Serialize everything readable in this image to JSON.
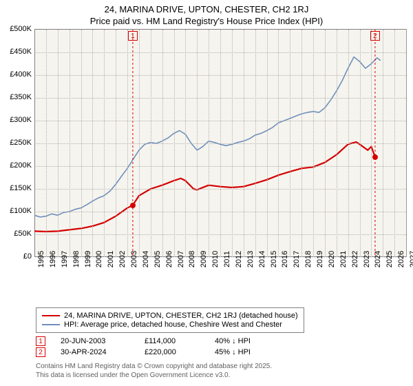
{
  "titles": {
    "line1": "24, MARINA DRIVE, UPTON, CHESTER, CH2 1RJ",
    "line2": "Price paid vs. HM Land Registry's House Price Index (HPI)"
  },
  "chart": {
    "type": "line",
    "background_color": "#f6f4ee",
    "grid_color": "#b0b0b0",
    "axis_color": "#808080",
    "xlim": [
      1995,
      2027
    ],
    "ylim": [
      0,
      500000
    ],
    "ytick_step": 50000,
    "yticks": [
      {
        "v": 0,
        "label": "£0"
      },
      {
        "v": 50000,
        "label": "£50K"
      },
      {
        "v": 100000,
        "label": "£100K"
      },
      {
        "v": 150000,
        "label": "£150K"
      },
      {
        "v": 200000,
        "label": "£200K"
      },
      {
        "v": 250000,
        "label": "£250K"
      },
      {
        "v": 300000,
        "label": "£300K"
      },
      {
        "v": 350000,
        "label": "£350K"
      },
      {
        "v": 400000,
        "label": "£400K"
      },
      {
        "v": 450000,
        "label": "£450K"
      },
      {
        "v": 500000,
        "label": "£500K"
      }
    ],
    "xticks": [
      1995,
      1996,
      1997,
      1998,
      1999,
      2000,
      2001,
      2002,
      2003,
      2004,
      2005,
      2006,
      2007,
      2008,
      2009,
      2010,
      2011,
      2012,
      2013,
      2014,
      2015,
      2016,
      2017,
      2018,
      2019,
      2020,
      2021,
      2022,
      2023,
      2024,
      2025,
      2026,
      2027
    ],
    "series": [
      {
        "id": "price_paid",
        "label": "24, MARINA DRIVE, UPTON, CHESTER, CH2 1RJ (detached house)",
        "color": "#d40000",
        "line_width": 2.2,
        "points": [
          [
            1995,
            57000
          ],
          [
            1996,
            56000
          ],
          [
            1997,
            57000
          ],
          [
            1998,
            60000
          ],
          [
            1999,
            63000
          ],
          [
            2000,
            68000
          ],
          [
            2001,
            76000
          ],
          [
            2002,
            90000
          ],
          [
            2003,
            108000
          ],
          [
            2003.47,
            114000
          ],
          [
            2004,
            135000
          ],
          [
            2005,
            150000
          ],
          [
            2006,
            158000
          ],
          [
            2007,
            168000
          ],
          [
            2007.6,
            173000
          ],
          [
            2008,
            168000
          ],
          [
            2008.7,
            150000
          ],
          [
            2009,
            148000
          ],
          [
            2010,
            158000
          ],
          [
            2011,
            155000
          ],
          [
            2012,
            153000
          ],
          [
            2013,
            155000
          ],
          [
            2014,
            162000
          ],
          [
            2015,
            170000
          ],
          [
            2016,
            180000
          ],
          [
            2017,
            188000
          ],
          [
            2018,
            195000
          ],
          [
            2019,
            198000
          ],
          [
            2020,
            208000
          ],
          [
            2021,
            225000
          ],
          [
            2022,
            248000
          ],
          [
            2022.7,
            253000
          ],
          [
            2023,
            248000
          ],
          [
            2023.7,
            235000
          ],
          [
            2024,
            243000
          ],
          [
            2024.33,
            220000
          ]
        ]
      },
      {
        "id": "hpi",
        "label": "HPI: Average price, detached house, Cheshire West and Chester",
        "color": "#6f8fbd",
        "line_width": 1.6,
        "points": [
          [
            1995,
            92000
          ],
          [
            1995.5,
            88000
          ],
          [
            1996,
            90000
          ],
          [
            1996.5,
            95000
          ],
          [
            1997,
            92000
          ],
          [
            1997.5,
            98000
          ],
          [
            1998,
            100000
          ],
          [
            1998.5,
            105000
          ],
          [
            1999,
            108000
          ],
          [
            1999.5,
            115000
          ],
          [
            2000,
            123000
          ],
          [
            2000.5,
            130000
          ],
          [
            2001,
            135000
          ],
          [
            2001.5,
            145000
          ],
          [
            2002,
            160000
          ],
          [
            2002.5,
            178000
          ],
          [
            2003,
            195000
          ],
          [
            2003.5,
            215000
          ],
          [
            2004,
            235000
          ],
          [
            2004.5,
            248000
          ],
          [
            2005,
            252000
          ],
          [
            2005.5,
            250000
          ],
          [
            2006,
            255000
          ],
          [
            2006.5,
            262000
          ],
          [
            2007,
            272000
          ],
          [
            2007.5,
            278000
          ],
          [
            2008,
            270000
          ],
          [
            2008.5,
            250000
          ],
          [
            2009,
            235000
          ],
          [
            2009.5,
            243000
          ],
          [
            2010,
            255000
          ],
          [
            2010.5,
            252000
          ],
          [
            2011,
            248000
          ],
          [
            2011.5,
            245000
          ],
          [
            2012,
            248000
          ],
          [
            2012.5,
            252000
          ],
          [
            2013,
            255000
          ],
          [
            2013.5,
            260000
          ],
          [
            2014,
            268000
          ],
          [
            2014.5,
            272000
          ],
          [
            2015,
            278000
          ],
          [
            2015.5,
            285000
          ],
          [
            2016,
            295000
          ],
          [
            2016.5,
            300000
          ],
          [
            2017,
            305000
          ],
          [
            2017.5,
            310000
          ],
          [
            2018,
            315000
          ],
          [
            2018.5,
            318000
          ],
          [
            2019,
            320000
          ],
          [
            2019.5,
            318000
          ],
          [
            2020,
            328000
          ],
          [
            2020.5,
            345000
          ],
          [
            2021,
            365000
          ],
          [
            2021.5,
            388000
          ],
          [
            2022,
            415000
          ],
          [
            2022.5,
            440000
          ],
          [
            2023,
            430000
          ],
          [
            2023.5,
            415000
          ],
          [
            2024,
            425000
          ],
          [
            2024.5,
            438000
          ],
          [
            2024.8,
            432000
          ]
        ]
      }
    ],
    "sale_markers": [
      {
        "n": "1",
        "x": 2003.47,
        "y": 114000,
        "color": "#d40000"
      },
      {
        "n": "2",
        "x": 2024.33,
        "y": 220000,
        "color": "#d40000"
      }
    ],
    "top_markers": [
      {
        "n": "1",
        "x": 2003.47,
        "color": "#d40000"
      },
      {
        "n": "2",
        "x": 2024.33,
        "color": "#d40000"
      }
    ]
  },
  "legend": {
    "items": [
      {
        "color": "#d40000",
        "label": "24, MARINA DRIVE, UPTON, CHESTER, CH2 1RJ (detached house)"
      },
      {
        "color": "#6f8fbd",
        "label": "HPI: Average price, detached house, Cheshire West and Chester"
      }
    ]
  },
  "events": [
    {
      "n": "1",
      "color": "#d40000",
      "date": "20-JUN-2003",
      "price": "£114,000",
      "delta": "40% ↓ HPI"
    },
    {
      "n": "2",
      "color": "#d40000",
      "date": "30-APR-2024",
      "price": "£220,000",
      "delta": "45% ↓ HPI"
    }
  ],
  "footer": {
    "line1": "Contains HM Land Registry data © Crown copyright and database right 2025.",
    "line2": "This data is licensed under the Open Government Licence v3.0."
  }
}
